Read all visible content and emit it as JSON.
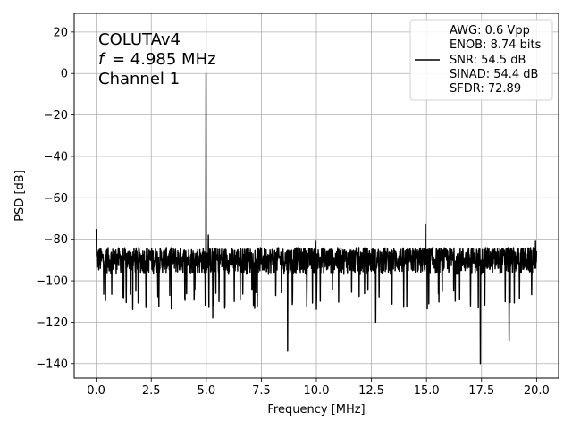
{
  "chart_data": {
    "type": "line",
    "xlabel": "Frequency [MHz]",
    "ylabel": "PSD [dB]",
    "xlim": [
      -1.0,
      21.0
    ],
    "ylim": [
      -147,
      29
    ],
    "xticks": [
      0.0,
      2.5,
      5.0,
      7.5,
      10.0,
      12.5,
      15.0,
      17.5,
      20.0
    ],
    "xtick_labels": [
      "0.0",
      "2.5",
      "5.0",
      "7.5",
      "10.0",
      "12.5",
      "15.0",
      "17.5",
      "20.0"
    ],
    "yticks": [
      20,
      0,
      -20,
      -40,
      -60,
      -80,
      -100,
      -120,
      -140
    ],
    "ytick_labels": [
      "20",
      "0",
      "−20",
      "−40",
      "−60",
      "−80",
      "−100",
      "−120",
      "−140"
    ],
    "grid": true,
    "annotation_lines": [
      "COLUTAv4",
      "= 4.985 MHz",
      "Channel 1"
    ],
    "annotation_symbol": "f",
    "legend_position": "top-right",
    "legend_lines": [
      "AWG: 0.6 Vpp",
      "ENOB: 8.74 bits",
      "SNR: 54.5 dB",
      "SINAD: 54.4 dB",
      "SFDR: 72.89"
    ],
    "series": [
      {
        "color": "#000000",
        "noise_floor_band": [
          -104,
          -84
        ],
        "peaks": [
          {
            "x": 0.0,
            "y": -75
          },
          {
            "x": 4.985,
            "y": 0
          },
          {
            "x": 5.1,
            "y": -78
          },
          {
            "x": 9.97,
            "y": -81
          },
          {
            "x": 14.95,
            "y": -73
          },
          {
            "x": 19.95,
            "y": -81
          }
        ],
        "notches": [
          {
            "x": 8.7,
            "y": -134
          },
          {
            "x": 17.45,
            "y": -140
          },
          {
            "x": 18.75,
            "y": -129
          },
          {
            "x": 12.7,
            "y": -120
          },
          {
            "x": 5.3,
            "y": -118
          }
        ]
      }
    ]
  }
}
